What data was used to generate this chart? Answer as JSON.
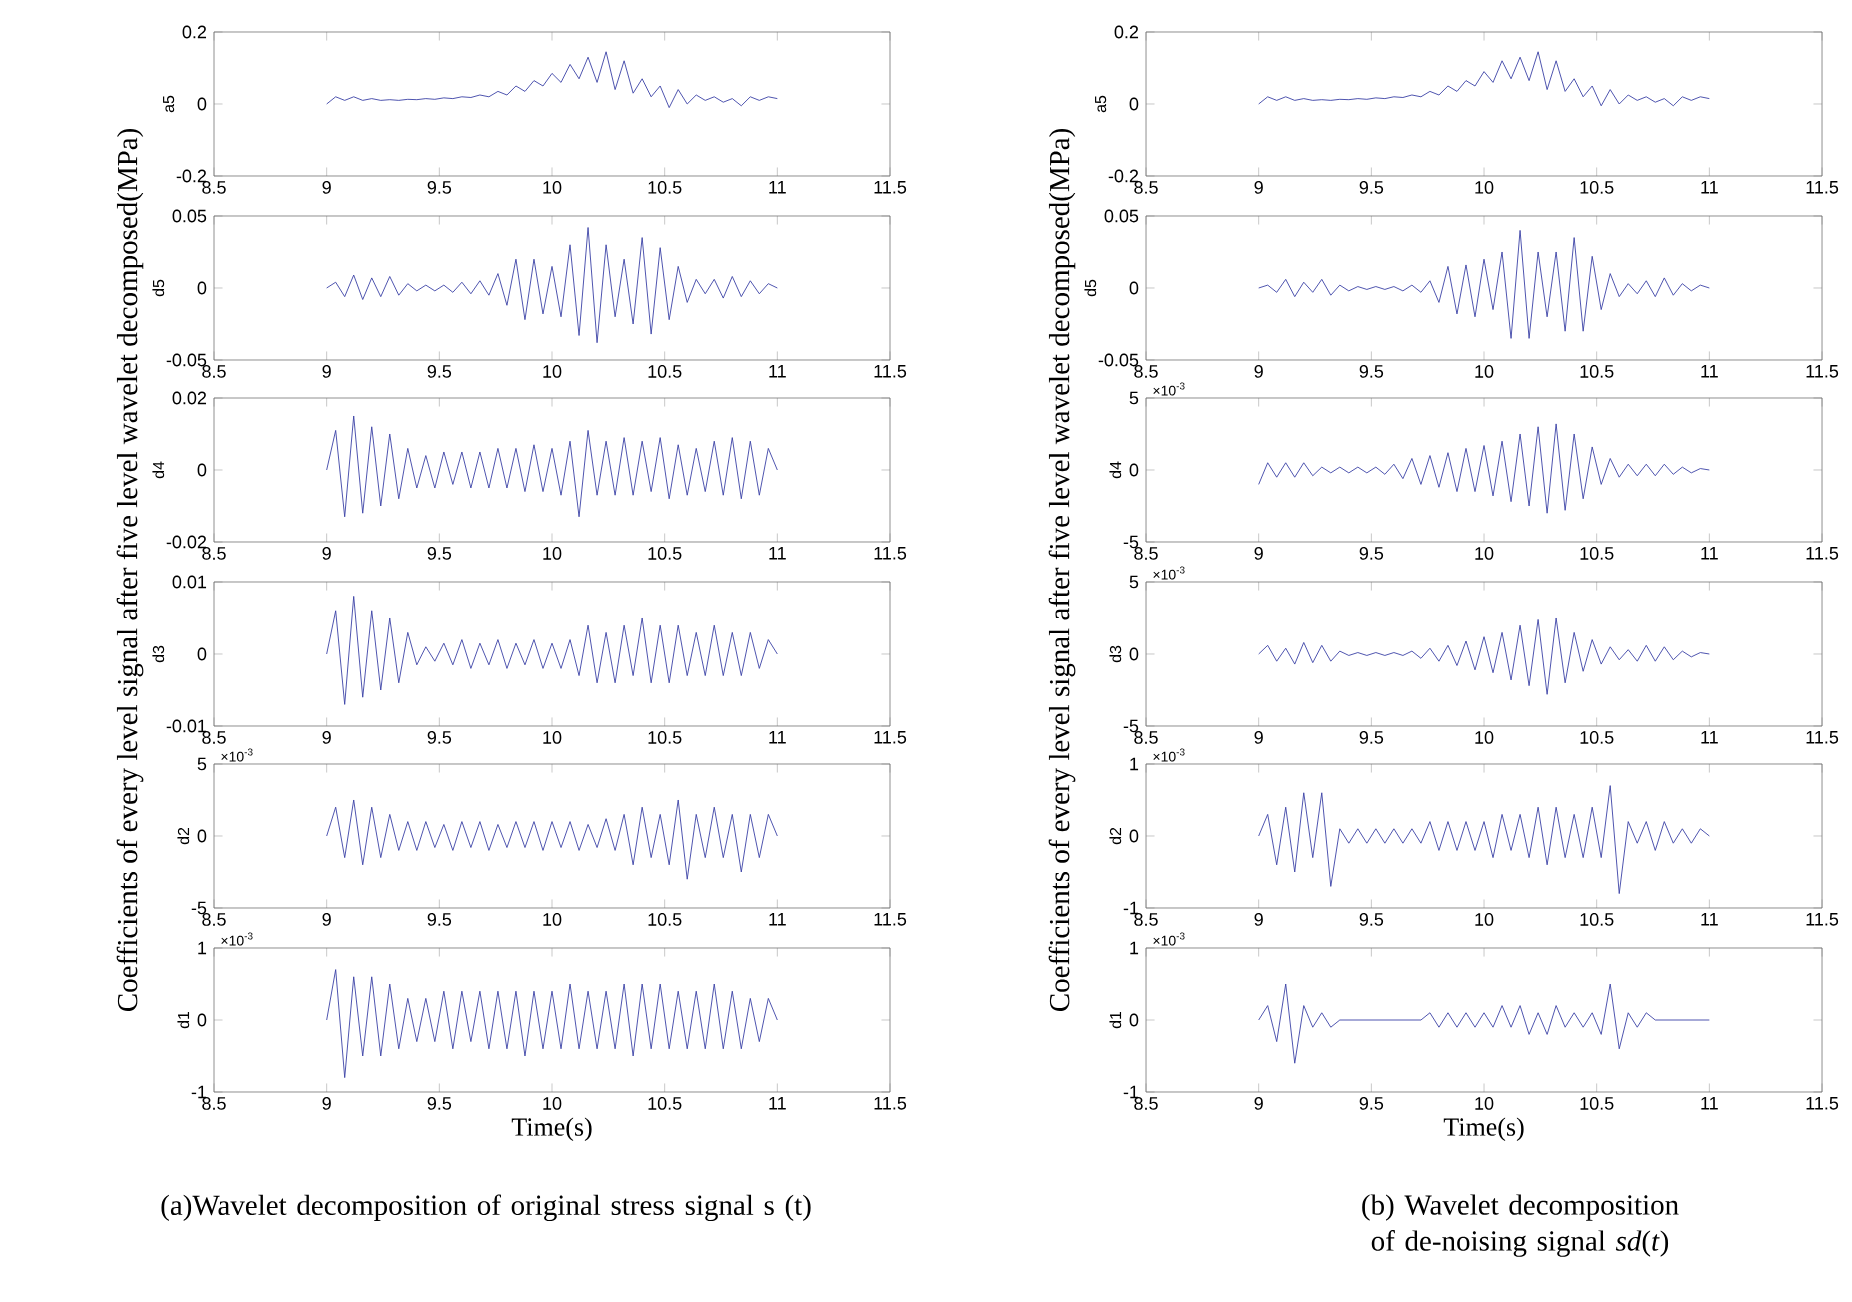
{
  "chart_data": [
    {
      "type": "line",
      "ylabel": "a5",
      "color": "#3b42a6",
      "xlim": [
        8.5,
        11.5
      ],
      "xticks": [
        8.5,
        9,
        9.5,
        10,
        10.5,
        11,
        11.5
      ],
      "ylim": [
        -0.2,
        0.2
      ],
      "yticks": [
        -0.2,
        0,
        0.2
      ],
      "x": [
        9,
        9.04,
        9.08,
        9.12,
        9.16,
        9.2,
        9.24,
        9.28,
        9.32,
        9.36,
        9.4,
        9.44,
        9.48,
        9.52,
        9.56,
        9.6,
        9.64,
        9.68,
        9.72,
        9.76,
        9.8,
        9.84,
        9.88,
        9.92,
        9.96,
        10,
        10.04,
        10.08,
        10.12,
        10.16,
        10.2,
        10.24,
        10.28,
        10.32,
        10.36,
        10.4,
        10.44,
        10.48,
        10.52,
        10.56,
        10.6,
        10.64,
        10.68,
        10.72,
        10.76,
        10.8,
        10.84,
        10.88,
        10.92,
        10.96,
        11
      ],
      "values": [
        0,
        0.02,
        0.01,
        0.02,
        0.01,
        0.015,
        0.01,
        0.012,
        0.01,
        0.013,
        0.012,
        0.015,
        0.013,
        0.017,
        0.015,
        0.02,
        0.018,
        0.025,
        0.02,
        0.035,
        0.025,
        0.05,
        0.035,
        0.065,
        0.05,
        0.085,
        0.06,
        0.11,
        0.07,
        0.13,
        0.06,
        0.145,
        0.04,
        0.12,
        0.03,
        0.07,
        0.02,
        0.05,
        -0.01,
        0.04,
        0,
        0.025,
        0.01,
        0.02,
        0.005,
        0.015,
        -0.005,
        0.02,
        0.01,
        0.02,
        0.015
      ]
    },
    {
      "type": "line",
      "ylabel": "d5",
      "color": "#3b42a6",
      "xlim": [
        8.5,
        11.5
      ],
      "xticks": [
        8.5,
        9,
        9.5,
        10,
        10.5,
        11,
        11.5
      ],
      "ylim": [
        -0.05,
        0.05
      ],
      "yticks": [
        -0.05,
        0,
        0.05
      ],
      "x": [
        9,
        9.04,
        9.08,
        9.12,
        9.16,
        9.2,
        9.24,
        9.28,
        9.32,
        9.36,
        9.4,
        9.44,
        9.48,
        9.52,
        9.56,
        9.6,
        9.64,
        9.68,
        9.72,
        9.76,
        9.8,
        9.84,
        9.88,
        9.92,
        9.96,
        10,
        10.04,
        10.08,
        10.12,
        10.16,
        10.2,
        10.24,
        10.28,
        10.32,
        10.36,
        10.4,
        10.44,
        10.48,
        10.52,
        10.56,
        10.6,
        10.64,
        10.68,
        10.72,
        10.76,
        10.8,
        10.84,
        10.88,
        10.92,
        10.96,
        11
      ],
      "values": [
        0,
        0.004,
        -0.006,
        0.009,
        -0.008,
        0.007,
        -0.006,
        0.008,
        -0.005,
        0.003,
        -0.002,
        0.002,
        -0.002,
        0.002,
        -0.003,
        0.004,
        -0.004,
        0.005,
        -0.005,
        0.01,
        -0.012,
        0.02,
        -0.022,
        0.02,
        -0.018,
        0.015,
        -0.02,
        0.03,
        -0.033,
        0.042,
        -0.038,
        0.03,
        -0.02,
        0.02,
        -0.025,
        0.035,
        -0.032,
        0.028,
        -0.022,
        0.015,
        -0.01,
        0.006,
        -0.004,
        0.006,
        -0.007,
        0.008,
        -0.006,
        0.005,
        -0.004,
        0.003,
        0
      ]
    },
    {
      "type": "line",
      "ylabel": "d4",
      "color": "#3b42a6",
      "xlim": [
        8.5,
        11.5
      ],
      "xticks": [
        8.5,
        9,
        9.5,
        10,
        10.5,
        11,
        11.5
      ],
      "ylim": [
        -0.02,
        0.02
      ],
      "yticks": [
        -0.02,
        0,
        0.02
      ],
      "x": [
        9,
        9.04,
        9.08,
        9.12,
        9.16,
        9.2,
        9.24,
        9.28,
        9.32,
        9.36,
        9.4,
        9.44,
        9.48,
        9.52,
        9.56,
        9.6,
        9.64,
        9.68,
        9.72,
        9.76,
        9.8,
        9.84,
        9.88,
        9.92,
        9.96,
        10,
        10.04,
        10.08,
        10.12,
        10.16,
        10.2,
        10.24,
        10.28,
        10.32,
        10.36,
        10.4,
        10.44,
        10.48,
        10.52,
        10.56,
        10.6,
        10.64,
        10.68,
        10.72,
        10.76,
        10.8,
        10.84,
        10.88,
        10.92,
        10.96,
        11
      ],
      "values": [
        0,
        0.011,
        -0.013,
        0.015,
        -0.012,
        0.012,
        -0.01,
        0.01,
        -0.008,
        0.006,
        -0.005,
        0.004,
        -0.005,
        0.005,
        -0.004,
        0.005,
        -0.005,
        0.005,
        -0.005,
        0.006,
        -0.005,
        0.006,
        -0.006,
        0.007,
        -0.006,
        0.006,
        -0.007,
        0.008,
        -0.013,
        0.011,
        -0.007,
        0.008,
        -0.007,
        0.009,
        -0.007,
        0.008,
        -0.006,
        0.009,
        -0.008,
        0.007,
        -0.007,
        0.006,
        -0.006,
        0.008,
        -0.007,
        0.009,
        -0.008,
        0.008,
        -0.007,
        0.006,
        0
      ]
    },
    {
      "type": "line",
      "ylabel": "d3",
      "color": "#3b42a6",
      "xlim": [
        8.5,
        11.5
      ],
      "xticks": [
        8.5,
        9,
        9.5,
        10,
        10.5,
        11,
        11.5
      ],
      "ylim": [
        -0.01,
        0.01
      ],
      "yticks": [
        -0.01,
        0,
        0.01
      ],
      "x": [
        9,
        9.04,
        9.08,
        9.12,
        9.16,
        9.2,
        9.24,
        9.28,
        9.32,
        9.36,
        9.4,
        9.44,
        9.48,
        9.52,
        9.56,
        9.6,
        9.64,
        9.68,
        9.72,
        9.76,
        9.8,
        9.84,
        9.88,
        9.92,
        9.96,
        10,
        10.04,
        10.08,
        10.12,
        10.16,
        10.2,
        10.24,
        10.28,
        10.32,
        10.36,
        10.4,
        10.44,
        10.48,
        10.52,
        10.56,
        10.6,
        10.64,
        10.68,
        10.72,
        10.76,
        10.8,
        10.84,
        10.88,
        10.92,
        10.96,
        11
      ],
      "values": [
        0,
        0.006,
        -0.007,
        0.008,
        -0.006,
        0.006,
        -0.005,
        0.005,
        -0.004,
        0.003,
        -0.0015,
        0.001,
        -0.001,
        0.0015,
        -0.0015,
        0.002,
        -0.002,
        0.0015,
        -0.0015,
        0.002,
        -0.002,
        0.0015,
        -0.0015,
        0.002,
        -0.002,
        0.0015,
        -0.002,
        0.002,
        -0.003,
        0.004,
        -0.004,
        0.003,
        -0.004,
        0.004,
        -0.003,
        0.005,
        -0.004,
        0.004,
        -0.004,
        0.004,
        -0.003,
        0.003,
        -0.003,
        0.004,
        -0.003,
        0.003,
        -0.003,
        0.003,
        -0.002,
        0.002,
        0
      ]
    },
    {
      "type": "line",
      "ylabel": "d2",
      "color": "#3b42a6",
      "xlim": [
        8.5,
        11.5
      ],
      "xticks": [
        8.5,
        9,
        9.5,
        10,
        10.5,
        11,
        11.5
      ],
      "ylim": [
        -5,
        5
      ],
      "yticks": [
        -5,
        0,
        5
      ],
      "annotations": [
        "×10$^{-3}$"
      ],
      "x": [
        9,
        9.04,
        9.08,
        9.12,
        9.16,
        9.2,
        9.24,
        9.28,
        9.32,
        9.36,
        9.4,
        9.44,
        9.48,
        9.52,
        9.56,
        9.6,
        9.64,
        9.68,
        9.72,
        9.76,
        9.8,
        9.84,
        9.88,
        9.92,
        9.96,
        10,
        10.04,
        10.08,
        10.12,
        10.16,
        10.2,
        10.24,
        10.28,
        10.32,
        10.36,
        10.4,
        10.44,
        10.48,
        10.52,
        10.56,
        10.6,
        10.64,
        10.68,
        10.72,
        10.76,
        10.8,
        10.84,
        10.88,
        10.92,
        10.96,
        11
      ],
      "values": [
        0,
        2,
        -1.5,
        2.5,
        -2,
        2,
        -1.5,
        1.5,
        -1,
        1,
        -1,
        1,
        -0.8,
        0.8,
        -1,
        1,
        -0.8,
        1,
        -1,
        0.8,
        -0.8,
        1,
        -0.8,
        1,
        -1,
        1,
        -0.8,
        1,
        -1,
        0.8,
        -0.8,
        1.2,
        -1,
        1.5,
        -2,
        2,
        -1.5,
        1.5,
        -2,
        2.5,
        -3,
        1.5,
        -1.5,
        2,
        -1.5,
        1.5,
        -2.5,
        1.5,
        -1.5,
        1.5,
        0
      ]
    },
    {
      "type": "line",
      "ylabel": "d1",
      "xlabel": "Time(s)",
      "color": "#3b42a6",
      "xlim": [
        8.5,
        11.5
      ],
      "xticks": [
        8.5,
        9,
        9.5,
        10,
        10.5,
        11,
        11.5
      ],
      "ylim": [
        -1,
        1
      ],
      "yticks": [
        -1,
        0,
        1
      ],
      "annotations": [
        "×10$^{-3}$",
        "Coefficients of every level signal after five level wavelet decomposed(MPa)",
        "(a)Wavelet decomposition of original stress signal s (t)"
      ],
      "x": [
        9,
        9.04,
        9.08,
        9.12,
        9.16,
        9.2,
        9.24,
        9.28,
        9.32,
        9.36,
        9.4,
        9.44,
        9.48,
        9.52,
        9.56,
        9.6,
        9.64,
        9.68,
        9.72,
        9.76,
        9.8,
        9.84,
        9.88,
        9.92,
        9.96,
        10,
        10.04,
        10.08,
        10.12,
        10.16,
        10.2,
        10.24,
        10.28,
        10.32,
        10.36,
        10.4,
        10.44,
        10.48,
        10.52,
        10.56,
        10.6,
        10.64,
        10.68,
        10.72,
        10.76,
        10.8,
        10.84,
        10.88,
        10.92,
        10.96,
        11
      ],
      "values": [
        0,
        0.7,
        -0.8,
        0.6,
        -0.5,
        0.6,
        -0.5,
        0.5,
        -0.4,
        0.3,
        -0.3,
        0.3,
        -0.3,
        0.4,
        -0.4,
        0.4,
        -0.3,
        0.4,
        -0.4,
        0.4,
        -0.4,
        0.4,
        -0.5,
        0.4,
        -0.4,
        0.4,
        -0.4,
        0.5,
        -0.4,
        0.4,
        -0.4,
        0.4,
        -0.4,
        0.5,
        -0.5,
        0.5,
        -0.4,
        0.5,
        -0.4,
        0.4,
        -0.4,
        0.4,
        -0.4,
        0.5,
        -0.4,
        0.4,
        -0.4,
        0.3,
        -0.3,
        0.3,
        0
      ]
    },
    {
      "type": "line",
      "ylabel": "a5",
      "color": "#3b42a6",
      "xlim": [
        8.5,
        11.5
      ],
      "xticks": [
        8.5,
        9,
        9.5,
        10,
        10.5,
        11,
        11.5
      ],
      "ylim": [
        -0.2,
        0.2
      ],
      "yticks": [
        -0.2,
        0,
        0.2
      ],
      "x": [
        9,
        9.04,
        9.08,
        9.12,
        9.16,
        9.2,
        9.24,
        9.28,
        9.32,
        9.36,
        9.4,
        9.44,
        9.48,
        9.52,
        9.56,
        9.6,
        9.64,
        9.68,
        9.72,
        9.76,
        9.8,
        9.84,
        9.88,
        9.92,
        9.96,
        10,
        10.04,
        10.08,
        10.12,
        10.16,
        10.2,
        10.24,
        10.28,
        10.32,
        10.36,
        10.4,
        10.44,
        10.48,
        10.52,
        10.56,
        10.6,
        10.64,
        10.68,
        10.72,
        10.76,
        10.8,
        10.84,
        10.88,
        10.92,
        10.96,
        11
      ],
      "values": [
        0,
        0.02,
        0.01,
        0.02,
        0.01,
        0.015,
        0.01,
        0.012,
        0.01,
        0.013,
        0.012,
        0.015,
        0.013,
        0.017,
        0.015,
        0.02,
        0.018,
        0.025,
        0.02,
        0.035,
        0.025,
        0.05,
        0.035,
        0.065,
        0.05,
        0.09,
        0.06,
        0.12,
        0.07,
        0.13,
        0.065,
        0.145,
        0.04,
        0.12,
        0.035,
        0.07,
        0.02,
        0.05,
        -0.005,
        0.04,
        0,
        0.025,
        0.01,
        0.02,
        0.005,
        0.015,
        -0.005,
        0.02,
        0.01,
        0.02,
        0.015
      ]
    },
    {
      "type": "line",
      "ylabel": "d5",
      "color": "#3b42a6",
      "xlim": [
        8.5,
        11.5
      ],
      "xticks": [
        8.5,
        9,
        9.5,
        10,
        10.5,
        11,
        11.5
      ],
      "ylim": [
        -0.05,
        0.05
      ],
      "yticks": [
        -0.05,
        0,
        0.05
      ],
      "x": [
        9,
        9.04,
        9.08,
        9.12,
        9.16,
        9.2,
        9.24,
        9.28,
        9.32,
        9.36,
        9.4,
        9.44,
        9.48,
        9.52,
        9.56,
        9.6,
        9.64,
        9.68,
        9.72,
        9.76,
        9.8,
        9.84,
        9.88,
        9.92,
        9.96,
        10,
        10.04,
        10.08,
        10.12,
        10.16,
        10.2,
        10.24,
        10.28,
        10.32,
        10.36,
        10.4,
        10.44,
        10.48,
        10.52,
        10.56,
        10.6,
        10.64,
        10.68,
        10.72,
        10.76,
        10.8,
        10.84,
        10.88,
        10.92,
        10.96,
        11
      ],
      "values": [
        0,
        0.002,
        -0.003,
        0.006,
        -0.006,
        0.004,
        -0.003,
        0.006,
        -0.005,
        0.002,
        -0.002,
        0.001,
        -0.001,
        0.001,
        -0.001,
        0.001,
        -0.002,
        0.002,
        -0.003,
        0.005,
        -0.01,
        0.015,
        -0.018,
        0.016,
        -0.02,
        0.02,
        -0.015,
        0.025,
        -0.035,
        0.04,
        -0.035,
        0.025,
        -0.02,
        0.025,
        -0.03,
        0.035,
        -0.03,
        0.022,
        -0.015,
        0.01,
        -0.006,
        0.003,
        -0.004,
        0.005,
        -0.006,
        0.007,
        -0.005,
        0.003,
        -0.002,
        0.002,
        0
      ]
    },
    {
      "type": "line",
      "ylabel": "d4",
      "color": "#3b42a6",
      "xlim": [
        8.5,
        11.5
      ],
      "xticks": [
        8.5,
        9,
        9.5,
        10,
        10.5,
        11,
        11.5
      ],
      "ylim": [
        -5,
        5
      ],
      "yticks": [
        -5,
        0,
        5
      ],
      "annotations": [
        "×10$^{-3}$"
      ],
      "x": [
        9,
        9.04,
        9.08,
        9.12,
        9.16,
        9.2,
        9.24,
        9.28,
        9.32,
        9.36,
        9.4,
        9.44,
        9.48,
        9.52,
        9.56,
        9.6,
        9.64,
        9.68,
        9.72,
        9.76,
        9.8,
        9.84,
        9.88,
        9.92,
        9.96,
        10,
        10.04,
        10.08,
        10.12,
        10.16,
        10.2,
        10.24,
        10.28,
        10.32,
        10.36,
        10.4,
        10.44,
        10.48,
        10.52,
        10.56,
        10.6,
        10.64,
        10.68,
        10.72,
        10.76,
        10.8,
        10.84,
        10.88,
        10.92,
        10.96,
        11
      ],
      "values": [
        -1,
        0.5,
        -0.5,
        0.5,
        -0.5,
        0.5,
        -0.4,
        0.2,
        -0.2,
        0.2,
        -0.2,
        0.2,
        -0.2,
        0.2,
        -0.3,
        0.4,
        -0.6,
        0.8,
        -1,
        1,
        -1.2,
        1.2,
        -1.5,
        1.5,
        -1.5,
        1.7,
        -1.8,
        2,
        -2.2,
        2.5,
        -2.5,
        3,
        -3,
        3.2,
        -2.8,
        2.5,
        -2,
        1.6,
        -1,
        0.8,
        -0.5,
        0.4,
        -0.4,
        0.4,
        -0.4,
        0.4,
        -0.3,
        0.2,
        -0.2,
        0.1,
        0
      ]
    },
    {
      "type": "line",
      "ylabel": "d3",
      "color": "#3b42a6",
      "xlim": [
        8.5,
        11.5
      ],
      "xticks": [
        8.5,
        9,
        9.5,
        10,
        10.5,
        11,
        11.5
      ],
      "ylim": [
        -5,
        5
      ],
      "yticks": [
        -5,
        0,
        5
      ],
      "annotations": [
        "×10$^{-3}$"
      ],
      "x": [
        9,
        9.04,
        9.08,
        9.12,
        9.16,
        9.2,
        9.24,
        9.28,
        9.32,
        9.36,
        9.4,
        9.44,
        9.48,
        9.52,
        9.56,
        9.6,
        9.64,
        9.68,
        9.72,
        9.76,
        9.8,
        9.84,
        9.88,
        9.92,
        9.96,
        10,
        10.04,
        10.08,
        10.12,
        10.16,
        10.2,
        10.24,
        10.28,
        10.32,
        10.36,
        10.4,
        10.44,
        10.48,
        10.52,
        10.56,
        10.6,
        10.64,
        10.68,
        10.72,
        10.76,
        10.8,
        10.84,
        10.88,
        10.92,
        10.96,
        11
      ],
      "values": [
        0,
        0.6,
        -0.5,
        0.4,
        -0.7,
        0.8,
        -0.6,
        0.6,
        -0.5,
        0.2,
        -0.1,
        0.1,
        -0.1,
        0.1,
        -0.1,
        0.1,
        -0.1,
        0.2,
        -0.3,
        0.4,
        -0.5,
        0.6,
        -0.8,
        0.9,
        -1.1,
        1.2,
        -1.3,
        1.5,
        -1.8,
        2,
        -2.2,
        2.4,
        -2.8,
        2.5,
        -2,
        1.5,
        -1.2,
        1,
        -0.7,
        0.5,
        -0.4,
        0.3,
        -0.5,
        0.6,
        -0.5,
        0.5,
        -0.4,
        0.2,
        -0.2,
        0.1,
        0
      ]
    },
    {
      "type": "line",
      "ylabel": "d2",
      "color": "#3b42a6",
      "xlim": [
        8.5,
        11.5
      ],
      "xticks": [
        8.5,
        9,
        9.5,
        10,
        10.5,
        11,
        11.5
      ],
      "ylim": [
        -1,
        1
      ],
      "yticks": [
        -1,
        0,
        1
      ],
      "annotations": [
        "×10$^{-3}$"
      ],
      "x": [
        9,
        9.04,
        9.08,
        9.12,
        9.16,
        9.2,
        9.24,
        9.28,
        9.32,
        9.36,
        9.4,
        9.44,
        9.48,
        9.52,
        9.56,
        9.6,
        9.64,
        9.68,
        9.72,
        9.76,
        9.8,
        9.84,
        9.88,
        9.92,
        9.96,
        10,
        10.04,
        10.08,
        10.12,
        10.16,
        10.2,
        10.24,
        10.28,
        10.32,
        10.36,
        10.4,
        10.44,
        10.48,
        10.52,
        10.56,
        10.6,
        10.64,
        10.68,
        10.72,
        10.76,
        10.8,
        10.84,
        10.88,
        10.92,
        10.96,
        11
      ],
      "values": [
        0,
        0.3,
        -0.4,
        0.4,
        -0.5,
        0.6,
        -0.3,
        0.6,
        -0.7,
        0.1,
        -0.1,
        0.1,
        -0.1,
        0.1,
        -0.1,
        0.1,
        -0.1,
        0.1,
        -0.1,
        0.2,
        -0.2,
        0.2,
        -0.2,
        0.2,
        -0.2,
        0.2,
        -0.3,
        0.3,
        -0.2,
        0.3,
        -0.3,
        0.4,
        -0.4,
        0.4,
        -0.3,
        0.3,
        -0.3,
        0.4,
        -0.3,
        0.7,
        -0.8,
        0.2,
        -0.1,
        0.2,
        -0.2,
        0.2,
        -0.1,
        0.1,
        -0.1,
        0.1,
        0
      ]
    },
    {
      "type": "line",
      "ylabel": "d1",
      "xlabel": "Time(s)",
      "color": "#3b42a6",
      "xlim": [
        8.5,
        11.5
      ],
      "xticks": [
        8.5,
        9,
        9.5,
        10,
        10.5,
        11,
        11.5
      ],
      "ylim": [
        -1,
        1
      ],
      "yticks": [
        -1,
        0,
        1
      ],
      "annotations": [
        "×10$^{-3}$",
        "Coefficients of every level signal after five level wavelet decomposed(MPa)",
        "(b) Wavelet decomposition of de-noising signal *sd*(*t*)"
      ],
      "x": [
        9,
        9.04,
        9.08,
        9.12,
        9.16,
        9.2,
        9.24,
        9.28,
        9.32,
        9.36,
        9.4,
        9.44,
        9.48,
        9.52,
        9.56,
        9.6,
        9.64,
        9.68,
        9.72,
        9.76,
        9.8,
        9.84,
        9.88,
        9.92,
        9.96,
        10,
        10.04,
        10.08,
        10.12,
        10.16,
        10.2,
        10.24,
        10.28,
        10.32,
        10.36,
        10.4,
        10.44,
        10.48,
        10.52,
        10.56,
        10.6,
        10.64,
        10.68,
        10.72,
        10.76,
        10.8,
        10.84,
        10.88,
        10.92,
        10.96,
        11
      ],
      "values": [
        0,
        0.2,
        -0.3,
        0.5,
        -0.6,
        0.2,
        -0.1,
        0.1,
        -0.1,
        0,
        0,
        0,
        0,
        0,
        0,
        0,
        0,
        0,
        0,
        0.1,
        -0.1,
        0.1,
        -0.1,
        0.1,
        -0.1,
        0.1,
        -0.1,
        0.2,
        -0.1,
        0.2,
        -0.2,
        0.1,
        -0.2,
        0.2,
        -0.1,
        0.1,
        -0.1,
        0.1,
        -0.2,
        0.5,
        -0.4,
        0.1,
        -0.1,
        0.1,
        0,
        0,
        0,
        0,
        0,
        0,
        0
      ]
    }
  ]
}
